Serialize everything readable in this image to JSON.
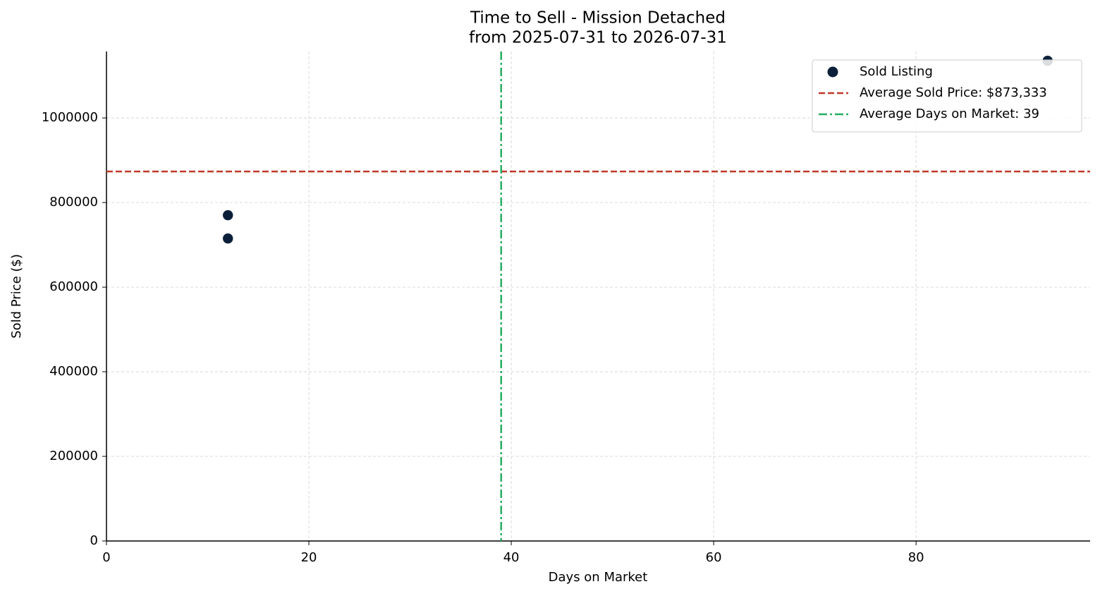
{
  "chart_data": {
    "type": "scatter",
    "title": "Time to Sell - Mission Detached",
    "subtitle": "from 2025-07-31 to 2026-07-31",
    "xlabel": "Days on Market",
    "ylabel": "Sold Price ($)",
    "series": [
      {
        "name": "Sold Listing",
        "color": "#0b1f3a",
        "x": [
          12,
          12,
          93
        ],
        "values": [
          770000,
          715000,
          1135000
        ]
      }
    ],
    "reference_lines": [
      {
        "name": "Average Sold Price: $873,333",
        "axis": "y",
        "value": 873333,
        "color": "#c0392b",
        "style": "dashed"
      },
      {
        "name": "Average Days on Market: 39",
        "axis": "x",
        "value": 39,
        "color": "#27ae60",
        "style": "dashdot"
      }
    ],
    "xlim": [
      0,
      97.2
    ],
    "ylim": [
      0,
      1157000
    ],
    "xticks": [
      0,
      20,
      40,
      60,
      80
    ],
    "yticks": [
      0,
      200000,
      400000,
      600000,
      800000,
      1000000
    ],
    "grid": true,
    "legend": "upper right"
  }
}
